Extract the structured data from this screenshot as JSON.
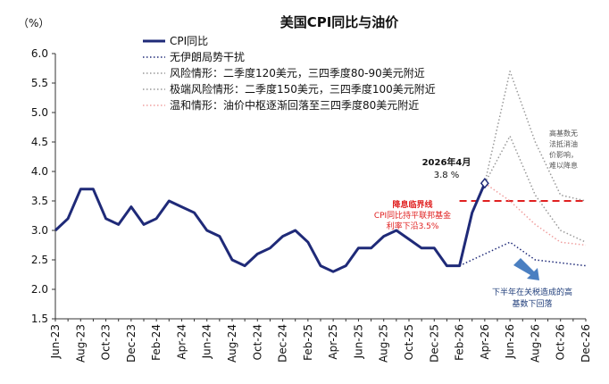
{
  "chart_data": {
    "type": "line",
    "title": "美国CPI同比与油价",
    "ylabel": "（%）",
    "ylim": [
      1.5,
      6.0
    ],
    "yticks": [
      "1.5",
      "2.0",
      "2.5",
      "3.0",
      "3.5",
      "4.0",
      "4.5",
      "5.0",
      "5.5",
      "6.0"
    ],
    "ytick_values": [
      1.5,
      2.0,
      2.5,
      3.0,
      3.5,
      4.0,
      4.5,
      5.0,
      5.5,
      6.0
    ],
    "xtick_labels": [
      "Jun-23",
      "Aug-23",
      "Oct-23",
      "Dec-23",
      "Feb-24",
      "Apr-24",
      "Jun-24",
      "Aug-24",
      "Oct-24",
      "Dec-24",
      "Feb-25",
      "Apr-25",
      "Jun-25",
      "Aug-25",
      "Oct-25",
      "Dec-25",
      "Feb-26",
      "Apr-26",
      "Jun-26",
      "Aug-26",
      "Oct-26",
      "Dec-26"
    ],
    "x_months": [
      "Jun-23",
      "Jul-23",
      "Aug-23",
      "Sep-23",
      "Oct-23",
      "Nov-23",
      "Dec-23",
      "Jan-24",
      "Feb-24",
      "Mar-24",
      "Apr-24",
      "May-24",
      "Jun-24",
      "Jul-24",
      "Aug-24",
      "Sep-24",
      "Oct-24",
      "Nov-24",
      "Dec-24",
      "Jan-25",
      "Feb-25",
      "Mar-25",
      "Apr-25",
      "May-25",
      "Jun-25",
      "Jul-25",
      "Aug-25",
      "Sep-25",
      "Oct-25",
      "Nov-25",
      "Dec-25",
      "Jan-26",
      "Feb-26",
      "Mar-26",
      "Apr-26",
      "May-26",
      "Jun-26",
      "Jul-26",
      "Aug-26",
      "Sep-26",
      "Oct-26",
      "Nov-26",
      "Dec-26"
    ],
    "legend_position": "top-left",
    "series": [
      {
        "name": "CPI同比",
        "color": "#1f2a78",
        "style": "solid",
        "x": [
          "Jun-23",
          "Jul-23",
          "Aug-23",
          "Sep-23",
          "Oct-23",
          "Nov-23",
          "Dec-23",
          "Jan-24",
          "Feb-24",
          "Mar-24",
          "Apr-24",
          "May-24",
          "Jun-24",
          "Jul-24",
          "Aug-24",
          "Sep-24",
          "Oct-24",
          "Nov-24",
          "Dec-24",
          "Jan-25",
          "Feb-25",
          "Mar-25",
          "Apr-25",
          "May-25",
          "Jun-25",
          "Jul-25",
          "Aug-25",
          "Sep-25",
          "Oct-25",
          "Nov-25",
          "Dec-25",
          "Jan-26",
          "Feb-26",
          "Mar-26",
          "Apr-26"
        ],
        "values": [
          3.0,
          3.2,
          3.7,
          3.7,
          3.2,
          3.1,
          3.4,
          3.1,
          3.2,
          3.5,
          3.4,
          3.3,
          3.0,
          2.9,
          2.5,
          2.4,
          2.6,
          2.7,
          2.9,
          3.0,
          2.8,
          2.4,
          2.3,
          2.4,
          2.7,
          2.7,
          2.9,
          3.0,
          2.85,
          2.7,
          2.7,
          2.4,
          2.4,
          3.3,
          3.8
        ]
      },
      {
        "name": "无伊朗局势干扰",
        "color": "#1f2a78",
        "style": "dotted",
        "x": [
          "Feb-26",
          "Jun-26",
          "Aug-26",
          "Dec-26"
        ],
        "values": [
          2.4,
          2.8,
          2.5,
          2.4
        ]
      },
      {
        "name": "风险情形：二季度120美元，三四季度80-90美元附近",
        "color": "#999999",
        "style": "dotted",
        "x": [
          "Apr-26",
          "Jun-26",
          "Aug-26",
          "Oct-26",
          "Dec-26"
        ],
        "values": [
          3.8,
          4.6,
          3.6,
          3.0,
          2.8
        ]
      },
      {
        "name": "极端风险情形：二季度150美元，三四季度100美元附近",
        "color": "#999999",
        "style": "dotted",
        "x": [
          "Apr-26",
          "Jun-26",
          "Aug-26",
          "Oct-26",
          "Dec-26"
        ],
        "values": [
          3.8,
          5.7,
          4.5,
          3.6,
          3.5
        ]
      },
      {
        "name": "温和情形：油价中枢逐渐回落至三四季度80美元附近",
        "color": "#f0a0a0",
        "style": "dotted",
        "x": [
          "Apr-26",
          "Jun-26",
          "Aug-26",
          "Oct-26",
          "Dec-26"
        ],
        "values": [
          3.8,
          3.5,
          3.1,
          2.8,
          2.75
        ]
      }
    ],
    "reference_lines": [
      {
        "y": 3.5,
        "x_from": "Feb-26",
        "x_to": "Dec-26",
        "color": "#e02020",
        "style": "dashed"
      }
    ],
    "annotations": {
      "apr26_label_line1": "2026年4月",
      "apr26_label_line2": "3.8 %",
      "threshold_line1": "降息临界线",
      "threshold_line2": "CPI同比持平联邦基金",
      "threshold_line3": "利率下沿3.5%",
      "highbase_line1": "高基数无",
      "highbase_line2": "法抵消油",
      "highbase_line3": "价影响，",
      "highbase_line4": "难以降息",
      "tariff_line1": "下半年在关税造成的高",
      "tariff_line2": "基数下回落"
    },
    "colors": {
      "threshold_text": "#e02020",
      "annotation_text": "#555555",
      "tariff_text": "#1f3d7a",
      "arrow": "#4a7fc1"
    },
    "grid": false
  }
}
